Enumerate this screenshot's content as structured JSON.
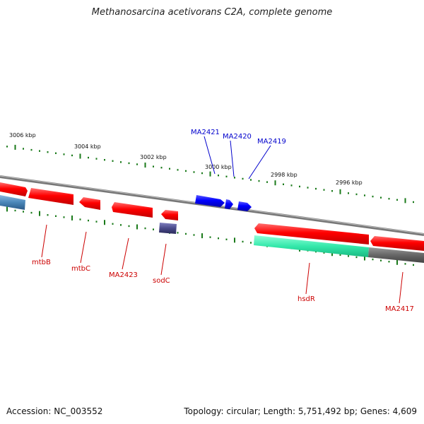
{
  "title": "Methanosarcina acetivorans C2A, complete genome",
  "accession": "Accession: NC_003552",
  "summary": "Topology: circular; Length: 5,751,492 bp; Genes: 4,609",
  "colors": {
    "forward_gene": "#ff0000",
    "reverse_gene": "#ff0000",
    "highlight_gene": "#0000ff",
    "backbone": "#888888",
    "tick": "#1a7a1a",
    "steelblue_gene": "#4a86b8",
    "purple_gene": "#4a4a8a",
    "teal_gene": "#33e8aa",
    "gray_gene": "#666666"
  },
  "ticks": [
    {
      "label": "3006 kbp"
    },
    {
      "label": "3004 kbp"
    },
    {
      "label": "3002 kbp"
    },
    {
      "label": "3000 kbp"
    },
    {
      "label": "2998 kbp"
    },
    {
      "label": "2996 kbp"
    }
  ],
  "gene_labels": {
    "top": [
      {
        "name": "MA2421",
        "color": "#0000cc"
      },
      {
        "name": "MA2420",
        "color": "#0000cc"
      },
      {
        "name": "MA2419",
        "color": "#0000cc"
      }
    ],
    "bottom": [
      {
        "name": "mtbB",
        "color": "#cc0000"
      },
      {
        "name": "mtbC",
        "color": "#cc0000"
      },
      {
        "name": "MA2423",
        "color": "#cc0000"
      },
      {
        "name": "sodC",
        "color": "#cc0000"
      },
      {
        "name": "hsdR",
        "color": "#cc0000"
      },
      {
        "name": "MA2417",
        "color": "#cc0000"
      }
    ]
  }
}
